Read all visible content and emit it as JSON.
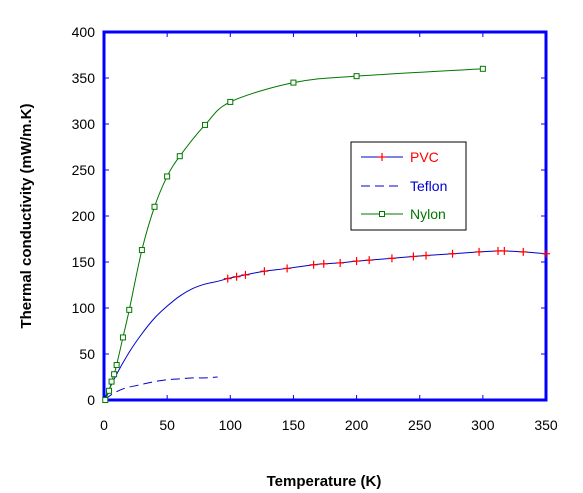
{
  "chart_data": {
    "type": "line",
    "title": "",
    "xlabel": "Temperature (K)",
    "ylabel": "Thermal conductivity (mW/m.K)",
    "xlim": [
      0,
      350
    ],
    "ylim": [
      0,
      400
    ],
    "x_ticks": [
      0,
      50,
      100,
      150,
      200,
      250,
      300,
      350
    ],
    "y_ticks": [
      0,
      50,
      100,
      150,
      200,
      250,
      300,
      350,
      400
    ],
    "grid": false,
    "legend_position": "right-middle",
    "frame_color": "#0000ff",
    "series": [
      {
        "name": "PVC",
        "color": "#0000cc",
        "marker": "plus",
        "marker_color": "#ff0000",
        "label_color": "#ff0000",
        "line_style": "solid",
        "x": [
          0,
          10,
          20,
          30,
          40,
          50,
          60,
          70,
          80,
          90,
          98,
          105,
          112,
          127,
          145,
          166,
          174,
          187,
          200,
          210,
          228,
          245,
          255,
          276,
          297,
          312,
          317,
          332,
          350
        ],
        "y": [
          0,
          28,
          52,
          72,
          89,
          102,
          113,
          121,
          126,
          129,
          132,
          134,
          136,
          140,
          143,
          147,
          148,
          149,
          151,
          152,
          154,
          156,
          157,
          159,
          161,
          162,
          162,
          161,
          159
        ],
        "marker_x": [
          98,
          105,
          112,
          127,
          145,
          166,
          174,
          187,
          200,
          210,
          228,
          245,
          255,
          276,
          297,
          312,
          317,
          332,
          350
        ],
        "marker_y": [
          132,
          134,
          136,
          140,
          143,
          147,
          148,
          149,
          151,
          152,
          154,
          156,
          157,
          159,
          161,
          162,
          162,
          161,
          159
        ]
      },
      {
        "name": "Teflon",
        "color": "#0000cc",
        "marker": "none",
        "label_color": "#0000cc",
        "line_style": "dashed",
        "x": [
          1,
          3,
          5,
          10,
          15,
          20,
          30,
          40,
          50,
          60,
          70,
          80,
          90
        ],
        "y": [
          0,
          3,
          5,
          9,
          12,
          14,
          17,
          20,
          22,
          23,
          24,
          24,
          25
        ]
      },
      {
        "name": "Nylon",
        "color": "#007700",
        "marker": "square",
        "marker_color": "#007700",
        "label_color": "#007700",
        "line_style": "solid",
        "x": [
          1,
          4,
          6,
          8,
          10,
          15,
          20,
          30,
          40,
          50,
          60,
          80,
          100,
          150,
          200,
          300
        ],
        "y": [
          0,
          10,
          20,
          28,
          38,
          68,
          98,
          163,
          210,
          243,
          265,
          299,
          324,
          345,
          352,
          360
        ]
      }
    ]
  }
}
